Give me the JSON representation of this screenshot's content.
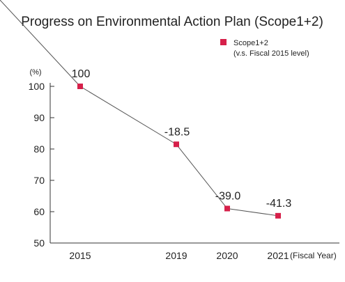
{
  "chart_data": {
    "type": "scatter",
    "title": "Progress on Environmental Action Plan (Scope1+2)",
    "ylabel": "(%)",
    "xlabel": "(Fiscal Year)",
    "ylim": [
      50,
      100
    ],
    "yticks": [
      50,
      60,
      70,
      80,
      90,
      100
    ],
    "categories": [
      "2015",
      "2019",
      "2020",
      "2021"
    ],
    "series": [
      {
        "name": "Scope1+2",
        "name_sub": "(v.s. Fiscal 2015 level)",
        "values": [
          100,
          81.5,
          61.0,
          58.7
        ],
        "data_labels": [
          "100",
          "-18.5",
          "-39.0",
          "-41.3"
        ],
        "connected_from": "2019",
        "color": "#d6204a"
      }
    ],
    "axis_color": "#333333",
    "line_color": "#555555",
    "grid": false,
    "legend": "top-right"
  }
}
